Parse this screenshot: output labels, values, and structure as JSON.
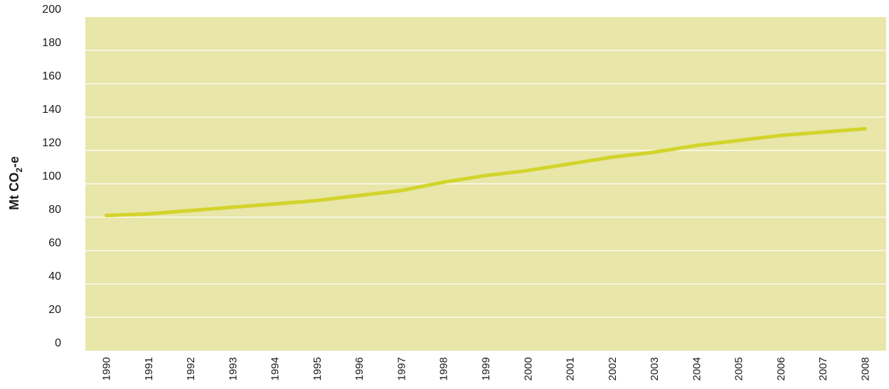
{
  "chart_data": {
    "type": "line",
    "title": "",
    "xlabel": "",
    "ylabel_main": "Mt CO",
    "ylabel_sub": "2",
    "ylabel_suffix": "-e",
    "x": [
      "1990",
      "1991",
      "1992",
      "1993",
      "1994",
      "1995",
      "1996",
      "1997",
      "1998",
      "1999",
      "2000",
      "2001",
      "2002",
      "2003",
      "2004",
      "2005",
      "2006",
      "2007",
      "2008"
    ],
    "series": [
      {
        "values": [
          81,
          82,
          84,
          86,
          88,
          90,
          93,
          96,
          101,
          105,
          108,
          112,
          116,
          119,
          123,
          126,
          129,
          131,
          133
        ]
      }
    ],
    "ylim": [
      0,
      200
    ],
    "yticks": [
      0,
      20,
      40,
      60,
      80,
      100,
      120,
      140,
      160,
      180,
      200
    ],
    "grid": true,
    "legend": "none",
    "colors": {
      "plot_bg": "#e8e6a9",
      "grid": "#ffffff",
      "line": "#d3d42b"
    }
  }
}
